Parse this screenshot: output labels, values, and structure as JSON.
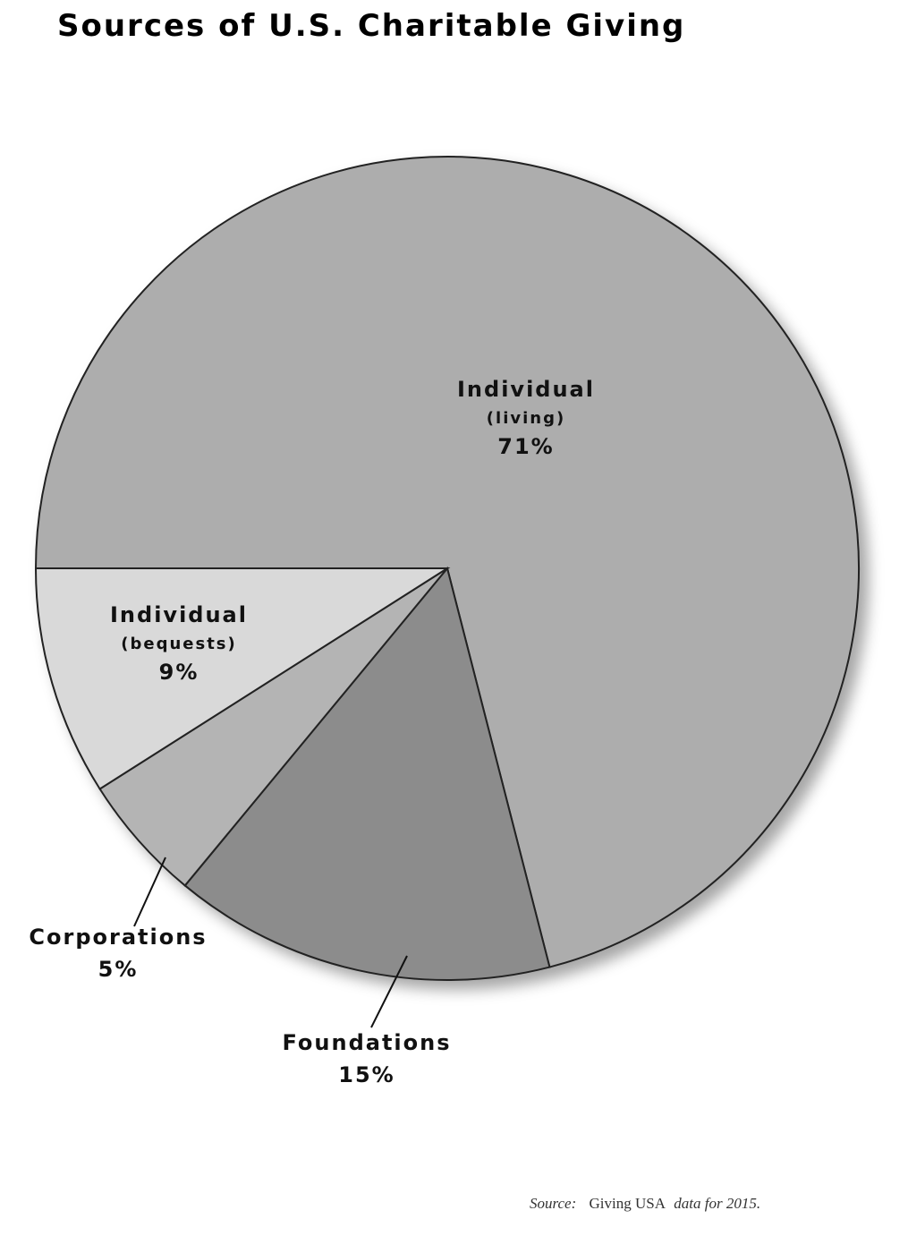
{
  "chart_data": {
    "type": "pie",
    "title": "Sources of U.S. Charitable Giving",
    "categories": [
      "Individual",
      "Foundations",
      "Corporations",
      "Individual"
    ],
    "notes": [
      "(living)",
      null,
      null,
      "(bequests)"
    ],
    "values": [
      71,
      15,
      5,
      9
    ],
    "value_labels": [
      "71%",
      "15%",
      "5%",
      "9%"
    ],
    "colors": [
      "#adadad",
      "#8c8c8c",
      "#b4b4b4",
      "#d9d9d9"
    ],
    "source": [
      "Source:",
      "Giving USA",
      "data for 2015."
    ]
  }
}
